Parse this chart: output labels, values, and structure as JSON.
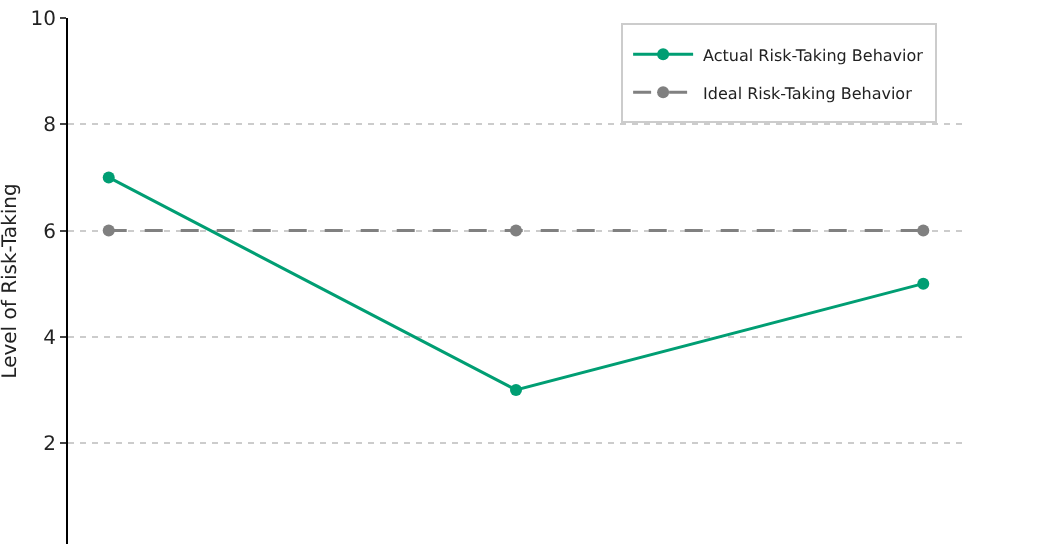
{
  "chart_data": {
    "type": "line",
    "ylabel": "Level of Risk-Taking",
    "categories": [
      null,
      null,
      null
    ],
    "series": [
      {
        "name": "Actual Risk-Taking Behavior",
        "color": "#009e73",
        "values": [
          7,
          3,
          5
        ],
        "line_style": "solid"
      },
      {
        "name": "Ideal Risk-Taking Behavior",
        "color": "#808080",
        "values": [
          6,
          6,
          6
        ],
        "line_style": "dashed"
      }
    ],
    "ylim": [
      0.1,
      10
    ],
    "yticks": [
      2,
      4,
      6,
      8,
      10
    ],
    "grid": true,
    "legend": "top right",
    "marker": "circle",
    "tick_labels": "y"
  }
}
